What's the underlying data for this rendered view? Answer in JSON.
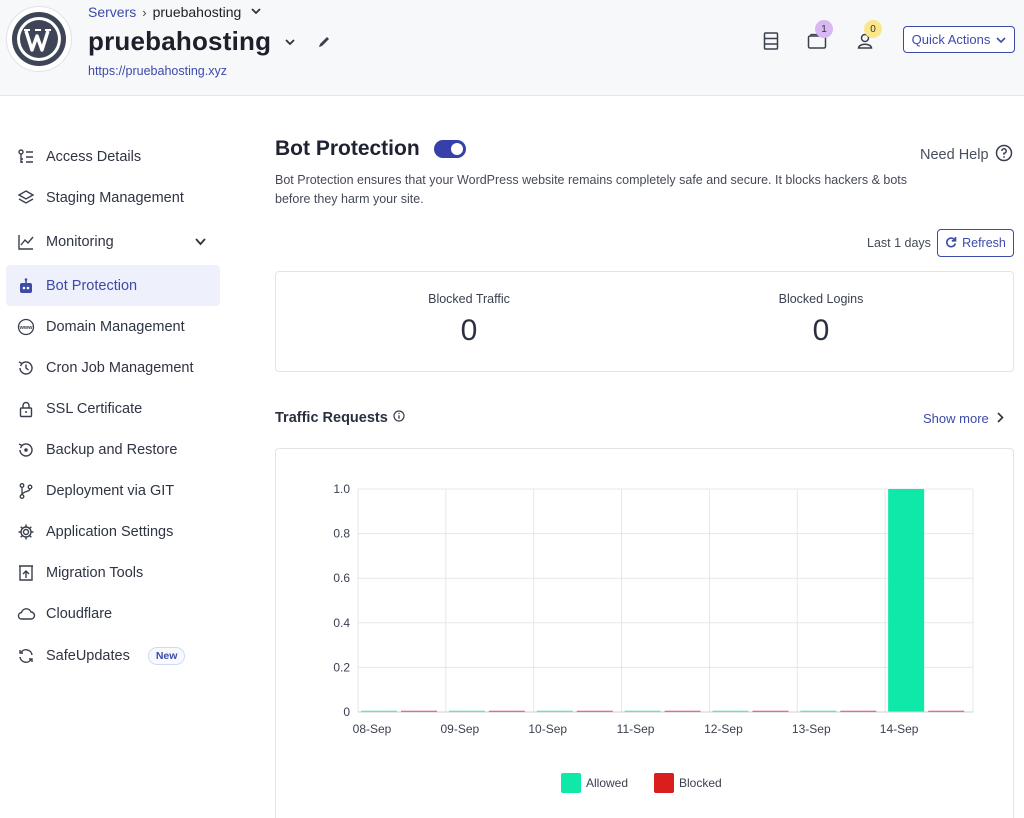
{
  "header": {
    "breadcrumb_link": "Servers",
    "breadcrumb_sep": "›",
    "breadcrumb_current": "pruebahosting",
    "site_title": "pruebahosting",
    "site_url": "https://pruebahosting.xyz",
    "notifications_count": "1",
    "users_count": "0",
    "quick_actions_label": "Quick Actions"
  },
  "sidebar": {
    "items": [
      {
        "label": "Access Details",
        "icon": "key-list-icon"
      },
      {
        "label": "Staging Management",
        "icon": "layers-icon"
      },
      {
        "label": "Monitoring",
        "icon": "line-chart-icon"
      },
      {
        "label": "Bot Protection",
        "icon": "robot-icon"
      },
      {
        "label": "Domain Management",
        "icon": "www-icon"
      },
      {
        "label": "Cron Job Management",
        "icon": "history-icon"
      },
      {
        "label": "SSL Certificate",
        "icon": "lock-icon"
      },
      {
        "label": "Backup and Restore",
        "icon": "backup-icon"
      },
      {
        "label": "Deployment via GIT",
        "icon": "git-branch-icon"
      },
      {
        "label": "Application Settings",
        "icon": "gear-icon"
      },
      {
        "label": "Migration Tools",
        "icon": "migration-icon"
      },
      {
        "label": "Cloudflare",
        "icon": "cloud-icon"
      },
      {
        "label": "SafeUpdates",
        "icon": "refresh-icon"
      }
    ],
    "new_badge": "New"
  },
  "main": {
    "title": "Bot Protection",
    "need_help": "Need Help",
    "description": "Bot Protection ensures that your WordPress website remains completely safe and secure. It blocks hackers & bots before they harm your site.",
    "range_label": "Last 1 days",
    "refresh_label": "Refresh",
    "stats": {
      "blocked_traffic_label": "Blocked Traffic",
      "blocked_traffic_value": "0",
      "blocked_logins_label": "Blocked Logins",
      "blocked_logins_value": "0"
    },
    "traffic_title": "Traffic Requests",
    "show_more": "Show more"
  },
  "colors": {
    "accent": "#3d4aa8",
    "allowed": "#0ee8a9",
    "blocked": "#d91e1e"
  },
  "chart_data": {
    "type": "bar",
    "categories": [
      "08-Sep",
      "09-Sep",
      "10-Sep",
      "11-Sep",
      "12-Sep",
      "13-Sep",
      "14-Sep"
    ],
    "series": [
      {
        "name": "Allowed",
        "values": [
          0,
          0,
          0,
          0,
          0,
          0,
          1
        ]
      },
      {
        "name": "Blocked",
        "values": [
          0,
          0,
          0,
          0,
          0,
          0,
          0
        ]
      }
    ],
    "yticks": [
      "0",
      "0.2",
      "0.4",
      "0.6",
      "0.8",
      "1.0"
    ],
    "ylim": [
      0,
      1
    ],
    "title": "",
    "xlabel": "",
    "ylabel": "",
    "legend": "bottom-center"
  }
}
